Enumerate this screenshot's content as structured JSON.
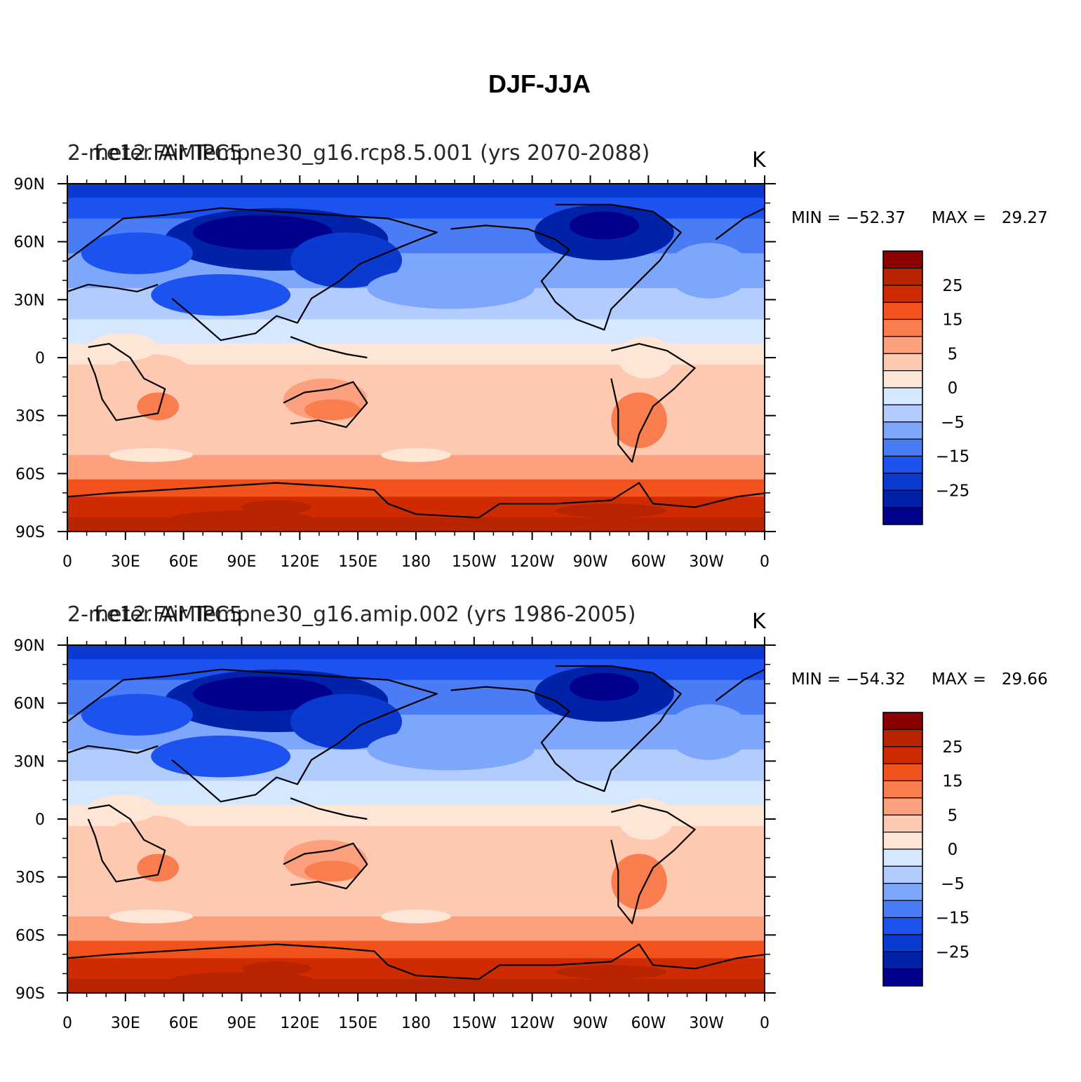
{
  "figure_title": "DJF-JJA",
  "colors": {
    "levels": [
      "#00008c",
      "#0022a8",
      "#0a3ad0",
      "#1c52f0",
      "#4a7cf6",
      "#7ea6fb",
      "#b3ccfe",
      "#d6e8ff",
      "#fde6d6",
      "#fdc9b0",
      "#fca07e",
      "#f97d4e",
      "#f2521c",
      "#d02a00",
      "#b82400",
      "#8b0000"
    ]
  },
  "chart_data": [
    {
      "type": "contour-map",
      "title": "f.e12.FAMIPC5.ne30_g16.rcp8.5.001 (yrs 2070-2088)",
      "variable_title": "2-meter Air Temp",
      "units": "K",
      "min_text": "MIN = −52.37",
      "max_text": "MAX =   29.27",
      "min": -52.37,
      "max": 29.27,
      "x_ticks": [
        "0",
        "30E",
        "60E",
        "90E",
        "120E",
        "150E",
        "180",
        "150W",
        "120W",
        "90W",
        "60W",
        "30W",
        "0"
      ],
      "y_ticks": [
        "90N",
        "60N",
        "30N",
        "0",
        "30S",
        "60S",
        "90S"
      ],
      "colorbar_levels": [
        -35,
        -30,
        -25,
        -20,
        -15,
        -10,
        -5,
        -1,
        0,
        1,
        5,
        10,
        15,
        20,
        25,
        30
      ],
      "colorbar_labels": [
        "25",
        "15",
        "5",
        "0",
        "−5",
        "−15",
        "−25"
      ]
    },
    {
      "type": "contour-map",
      "title": "f.e12.FAMIPC5.ne30_g16.amip.002 (yrs 1986-2005)",
      "variable_title": "2-meter Air Temp",
      "units": "K",
      "min_text": "MIN = −54.32",
      "max_text": "MAX =   29.66",
      "min": -54.32,
      "max": 29.66,
      "x_ticks": [
        "0",
        "30E",
        "60E",
        "90E",
        "120E",
        "150E",
        "180",
        "150W",
        "120W",
        "90W",
        "60W",
        "30W",
        "0"
      ],
      "y_ticks": [
        "90N",
        "60N",
        "30N",
        "0",
        "30S",
        "60S",
        "90S"
      ],
      "colorbar_levels": [
        -35,
        -30,
        -25,
        -20,
        -15,
        -10,
        -5,
        -1,
        0,
        1,
        5,
        10,
        15,
        20,
        25,
        30
      ],
      "colorbar_labels": [
        "25",
        "15",
        "5",
        "0",
        "−5",
        "−15",
        "−25"
      ]
    }
  ]
}
